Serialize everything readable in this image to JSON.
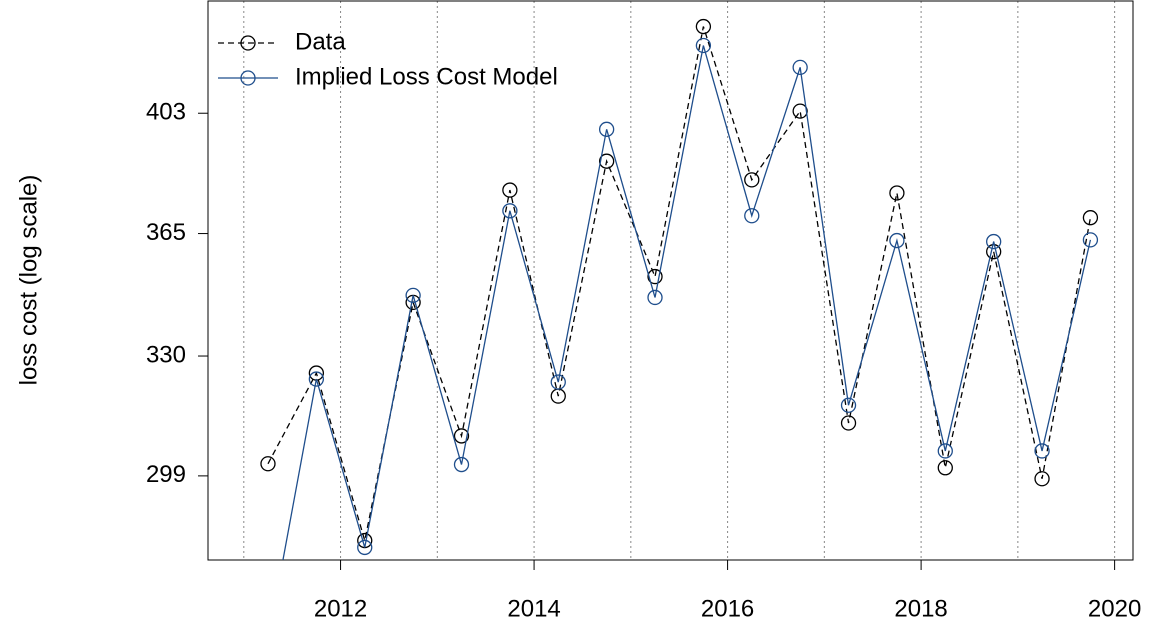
{
  "chart_data": {
    "type": "line",
    "ylabel": "loss cost (log scale)",
    "log_y": true,
    "x": [
      2011.25,
      2011.75,
      2012.25,
      2012.75,
      2013.25,
      2013.75,
      2014.25,
      2014.75,
      2015.25,
      2015.75,
      2016.25,
      2016.75,
      2017.25,
      2017.75,
      2018.25,
      2018.75,
      2019.25,
      2019.75
    ],
    "series": [
      {
        "name": "Data",
        "color": "#000000",
        "dash": true,
        "values": [
          302,
          325.4,
          283.5,
          344.9,
          309.0,
          378.3,
          319.3,
          387.4,
          352.3,
          432.8,
          381.5,
          403.7,
          312.3,
          377.4,
          301.0,
          359.6,
          298.3,
          369.8
        ]
      },
      {
        "name": "Implied Loss Cost Model",
        "color": "#1f4e8c",
        "dash": false,
        "values": [
          261,
          323.8,
          281.9,
          346.9,
          301.8,
          371.9,
          323.0,
          397.7,
          346.3,
          426.1,
          370.4,
          418.5,
          316.9,
          362.9,
          305.2,
          362.6,
          305.2,
          363.1
        ]
      }
    ],
    "xlim": [
      2010.63,
      2020.19
    ],
    "xticks": [
      2012,
      2014,
      2016,
      2018,
      2020
    ],
    "xgrid": [
      2011,
      2012,
      2013,
      2014,
      2015,
      2016,
      2017,
      2018,
      2019,
      2020
    ],
    "ylim": [
      279,
      442
    ],
    "yticks": [
      299,
      330,
      365,
      403
    ],
    "legend": "top-left"
  }
}
